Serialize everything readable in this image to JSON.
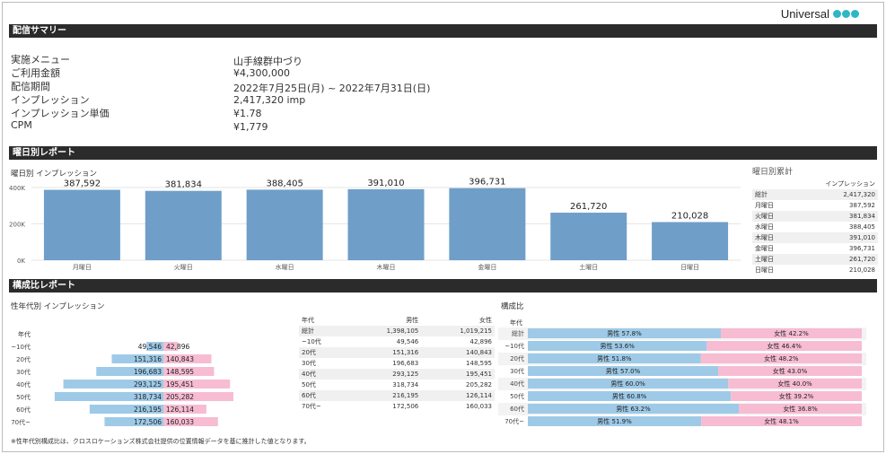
{
  "brand": {
    "name": "Universal",
    "dot_color": "#2fb6c5"
  },
  "summary": {
    "header": "配信サマリー",
    "rows": [
      {
        "label": "実施メニュー",
        "value": "山手線群中づり"
      },
      {
        "label": "ご利用金額",
        "value": "¥4,300,000"
      },
      {
        "label": "配信期間",
        "value": "2022年7月25日(月) ~ 2022年7月31日(日)"
      },
      {
        "label": "インプレッション",
        "value": "2,417,320 imp"
      },
      {
        "label": "インプレッション単価",
        "value": "¥1.78"
      },
      {
        "label": "CPM",
        "value": "¥1,779"
      }
    ]
  },
  "weekday": {
    "header": "曜日別レポート",
    "chart_title": "曜日別 インプレッション",
    "table_title": "曜日別累計",
    "table_col": "インプレッション",
    "total_label": "総計",
    "total_value": "2,417,320",
    "rows": [
      {
        "label": "月曜日",
        "value": "387,592"
      },
      {
        "label": "火曜日",
        "value": "381,834"
      },
      {
        "label": "水曜日",
        "value": "388,405"
      },
      {
        "label": "木曜日",
        "value": "391,010"
      },
      {
        "label": "金曜日",
        "value": "396,731"
      },
      {
        "label": "土曜日",
        "value": "261,720"
      },
      {
        "label": "日曜日",
        "value": "210,028"
      }
    ]
  },
  "composition": {
    "header": "構成比レポート",
    "pyramid_title": "性年代別 インプレッション",
    "pyramid_axis": "年代",
    "table_cols": [
      "年代",
      "男性",
      "女性"
    ],
    "total_row": {
      "label": "総計",
      "male": "1,398,105",
      "female": "1,019,215"
    },
    "ratio_title": "構成比",
    "ratio_axis": "年代",
    "rows": [
      {
        "label": "~10代",
        "male": "49,546",
        "female": "42,896",
        "male_pct": "男性 53.6%",
        "female_pct": "女性 46.4%"
      },
      {
        "label": "20代",
        "male": "151,316",
        "female": "140,843",
        "male_pct": "男性 51.8%",
        "female_pct": "女性 48.2%"
      },
      {
        "label": "30代",
        "male": "196,683",
        "female": "148,595",
        "male_pct": "男性 57.0%",
        "female_pct": "女性 43.0%"
      },
      {
        "label": "40代",
        "male": "293,125",
        "female": "195,451",
        "male_pct": "男性 60.0%",
        "female_pct": "女性 40.0%"
      },
      {
        "label": "50代",
        "male": "318,734",
        "female": "205,282",
        "male_pct": "男性 60.8%",
        "female_pct": "女性 39.2%"
      },
      {
        "label": "60代",
        "male": "216,195",
        "female": "126,114",
        "male_pct": "男性 63.2%",
        "female_pct": "女性 36.8%"
      },
      {
        "label": "70代~",
        "male": "172,506",
        "female": "160,033",
        "male_pct": "男性 51.9%",
        "female_pct": "女性 48.1%"
      }
    ],
    "ratio_total": {
      "label": "総計",
      "male_pct": "男性 57.8%",
      "female_pct": "女性 42.2%"
    },
    "colors": {
      "male": "#9ecae8",
      "female": "#f7bcd2"
    }
  },
  "footnote": "※性年代別構成比は、クロスロケーションズ株式会社提供の位置情報データを基に推計した値となります。",
  "chart_data": [
    {
      "type": "bar",
      "title": "曜日別 インプレッション",
      "categories": [
        "月曜日",
        "火曜日",
        "水曜日",
        "木曜日",
        "金曜日",
        "土曜日",
        "日曜日"
      ],
      "values": [
        387592,
        381834,
        388405,
        391010,
        396731,
        261720,
        210028
      ],
      "value_labels": [
        "387,592",
        "381,834",
        "388,405",
        "391,010",
        "396,731",
        "261,720",
        "210,028"
      ],
      "y_ticks": [
        "0K",
        "200K",
        "400K"
      ],
      "ylim": [
        0,
        420000
      ],
      "color": "#6f9fc8"
    },
    {
      "type": "bar",
      "title": "性年代別 インプレッション",
      "categories": [
        "~10代",
        "20代",
        "30代",
        "40代",
        "50代",
        "60代",
        "70代~"
      ],
      "series": [
        {
          "name": "男性",
          "values": [
            49546,
            151316,
            196683,
            293125,
            318734,
            216195,
            172506
          ]
        },
        {
          "name": "女性",
          "values": [
            42896,
            140843,
            148595,
            195451,
            205282,
            126114,
            160033
          ]
        }
      ]
    },
    {
      "type": "bar",
      "title": "構成比",
      "categories": [
        "総計",
        "~10代",
        "20代",
        "30代",
        "40代",
        "50代",
        "60代",
        "70代~"
      ],
      "series": [
        {
          "name": "男性",
          "values": [
            57.8,
            53.6,
            51.8,
            57.0,
            60.0,
            60.8,
            63.2,
            51.9
          ]
        },
        {
          "name": "女性",
          "values": [
            42.2,
            46.4,
            48.2,
            43.0,
            40.0,
            39.2,
            36.8,
            48.1
          ]
        }
      ]
    }
  ]
}
